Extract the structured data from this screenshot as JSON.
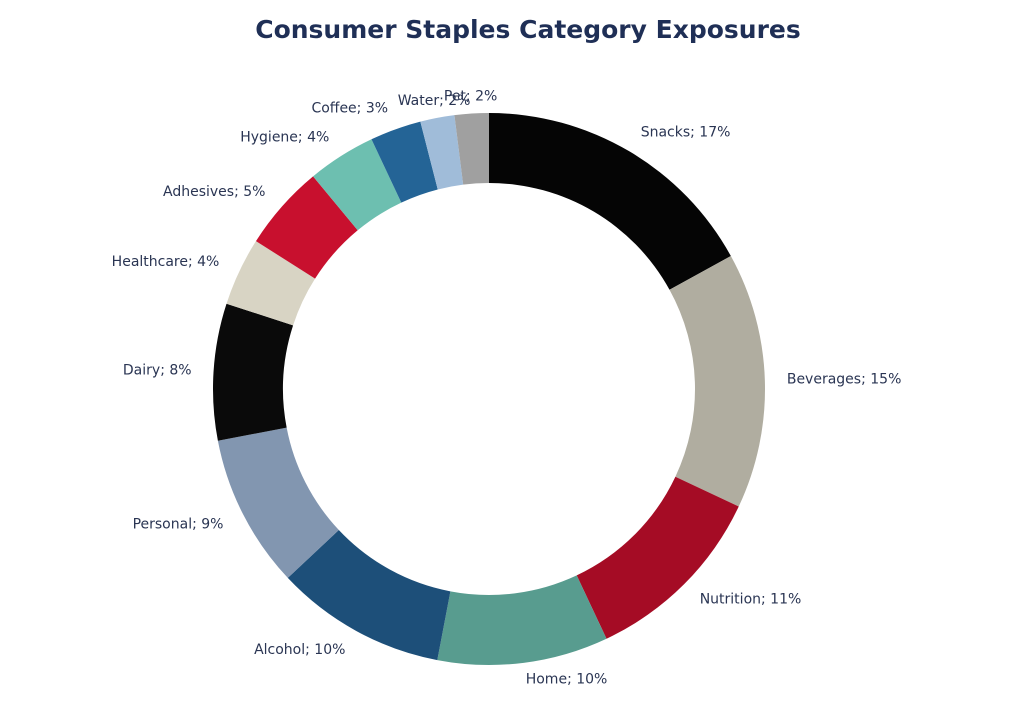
{
  "chart_data": {
    "type": "donut",
    "title": "Consumer Staples Category Exposures",
    "values": [
      17,
      15,
      11,
      10,
      10,
      9,
      8,
      4,
      5,
      4,
      3,
      2,
      2
    ],
    "value_labels": [
      "Snacks; 17%",
      "Beverages; 15%",
      "Nutrition; 11%",
      "Home; 10%",
      "Alcohol; 10%",
      "Personal; 9%",
      "Dairy; 8%",
      "Healthcare; 4%",
      "Adhesives; 5%",
      "Hygiene; 4%",
      "Coffee; 3%",
      "Water; 2%",
      "Pet; 2%"
    ],
    "colors": [
      "#050505",
      "#b0ada0",
      "#a50c25",
      "#589c8f",
      "#1d4f79",
      "#8296b0",
      "#0a0a0a",
      "#d8d4c4",
      "#c8102e",
      "#6dbfb0",
      "#246496",
      "#a0bcd9",
      "#a0a0a0"
    ]
  }
}
